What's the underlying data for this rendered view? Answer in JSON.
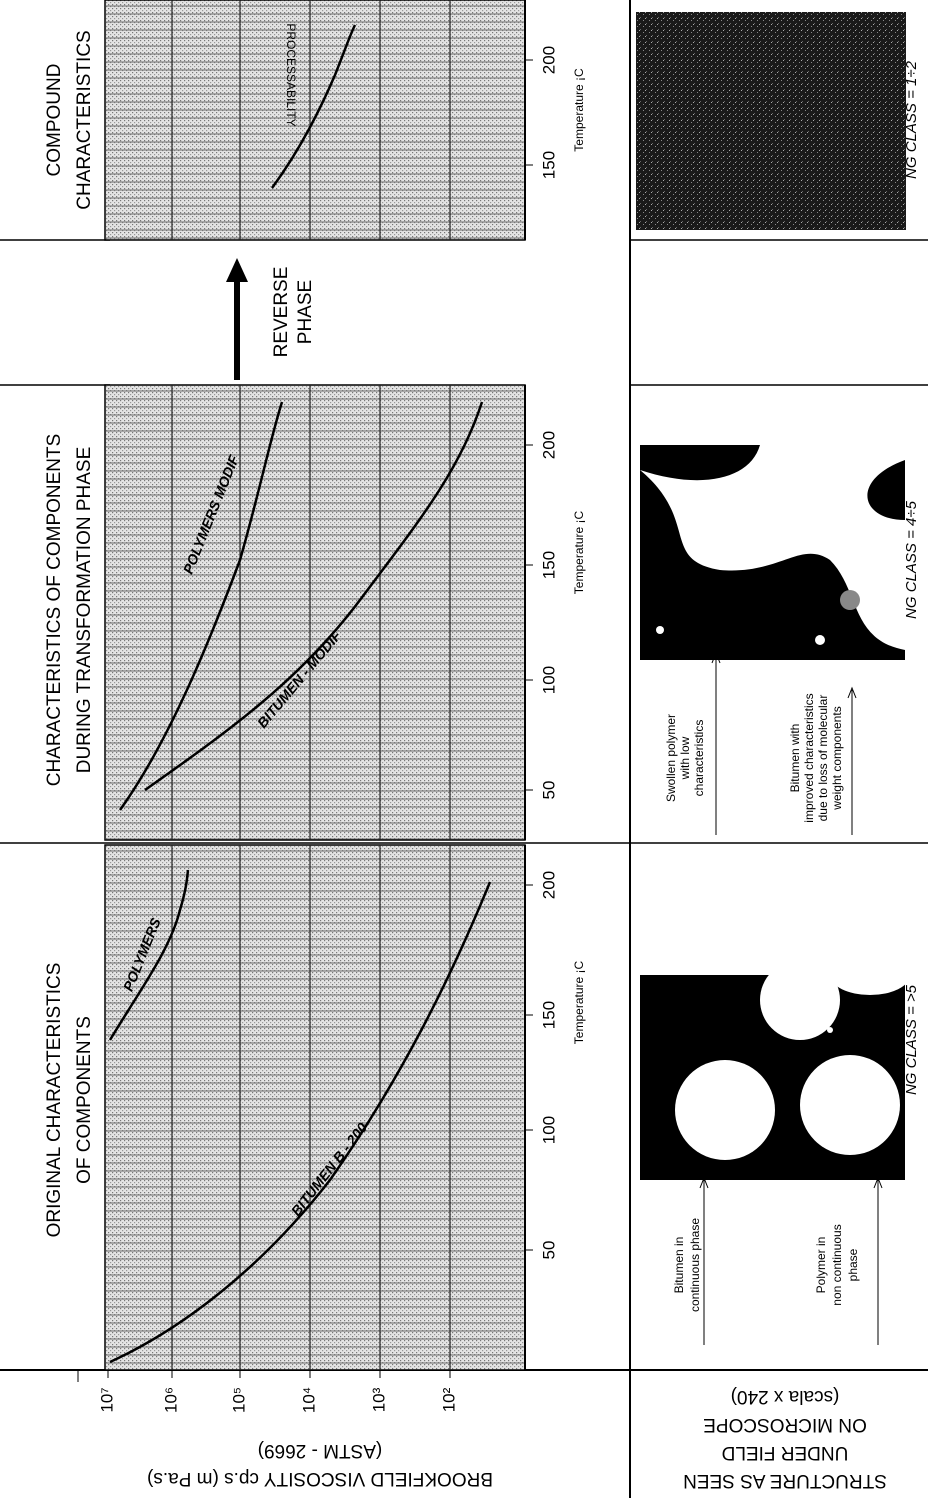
{
  "y_axis": {
    "title": "BROOKFIELD VISCOSITY cp.s (m Pa.s)",
    "subtitle": "(ASTM - 2669)",
    "ticks": [
      "10⁷",
      "10⁶",
      "10⁵",
      "10⁴",
      "10³",
      "10²"
    ]
  },
  "structure_label": [
    "STRUCTURE AS SEEN",
    "UNDER FIELD",
    "ON MICROSCOPE",
    "(scala x 240)"
  ],
  "reverse_phase": [
    "REVERSE",
    "PHASE"
  ],
  "panels": [
    {
      "title_lines": [
        "ORIGINAL CHARACTERISTICS",
        "OF COMPONENTS"
      ],
      "x_axis_label": "Temperature ¡C",
      "x_ticks": [
        "50",
        "100",
        "150",
        "200"
      ],
      "curves": [
        "BITUMEN B - 200",
        "POLYMERS"
      ],
      "ng_class": "NG CLASS = >5",
      "notes": [
        [
          "Bitumen in",
          "continuous phase"
        ],
        [
          "Polymer in",
          "non continuous",
          "phase"
        ]
      ]
    },
    {
      "title_lines": [
        "CHARACTERISTICS OF COMPONENTS",
        "DURING TRANSFORMATION PHASE"
      ],
      "x_axis_label": "Temperature ¡C",
      "x_ticks": [
        "50",
        "100",
        "150",
        "200"
      ],
      "curves": [
        "BITUMEN - MODIF",
        "POLYMERS MODIF"
      ],
      "ng_class": "NG CLASS = 4÷5",
      "notes": [
        [
          "Swollen polymer",
          "with low",
          "characteristics"
        ],
        [
          "Bitumen with",
          "improved characteristics",
          "due to loss of molecular",
          "weight components"
        ]
      ]
    },
    {
      "title_lines": [
        "COMPOUND",
        "CHARACTERISTICS"
      ],
      "x_axis_label": "Temperature ¡C",
      "x_ticks": [
        "150",
        "200"
      ],
      "curves": [
        "PROCESSABILITY"
      ],
      "ng_class": "NG CLASS = 1÷2"
    }
  ]
}
